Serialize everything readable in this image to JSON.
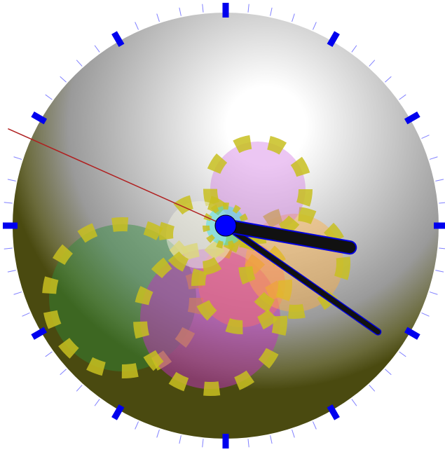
{
  "time": {
    "hours": 3,
    "minutes": 20,
    "seconds": 49
  }
}
